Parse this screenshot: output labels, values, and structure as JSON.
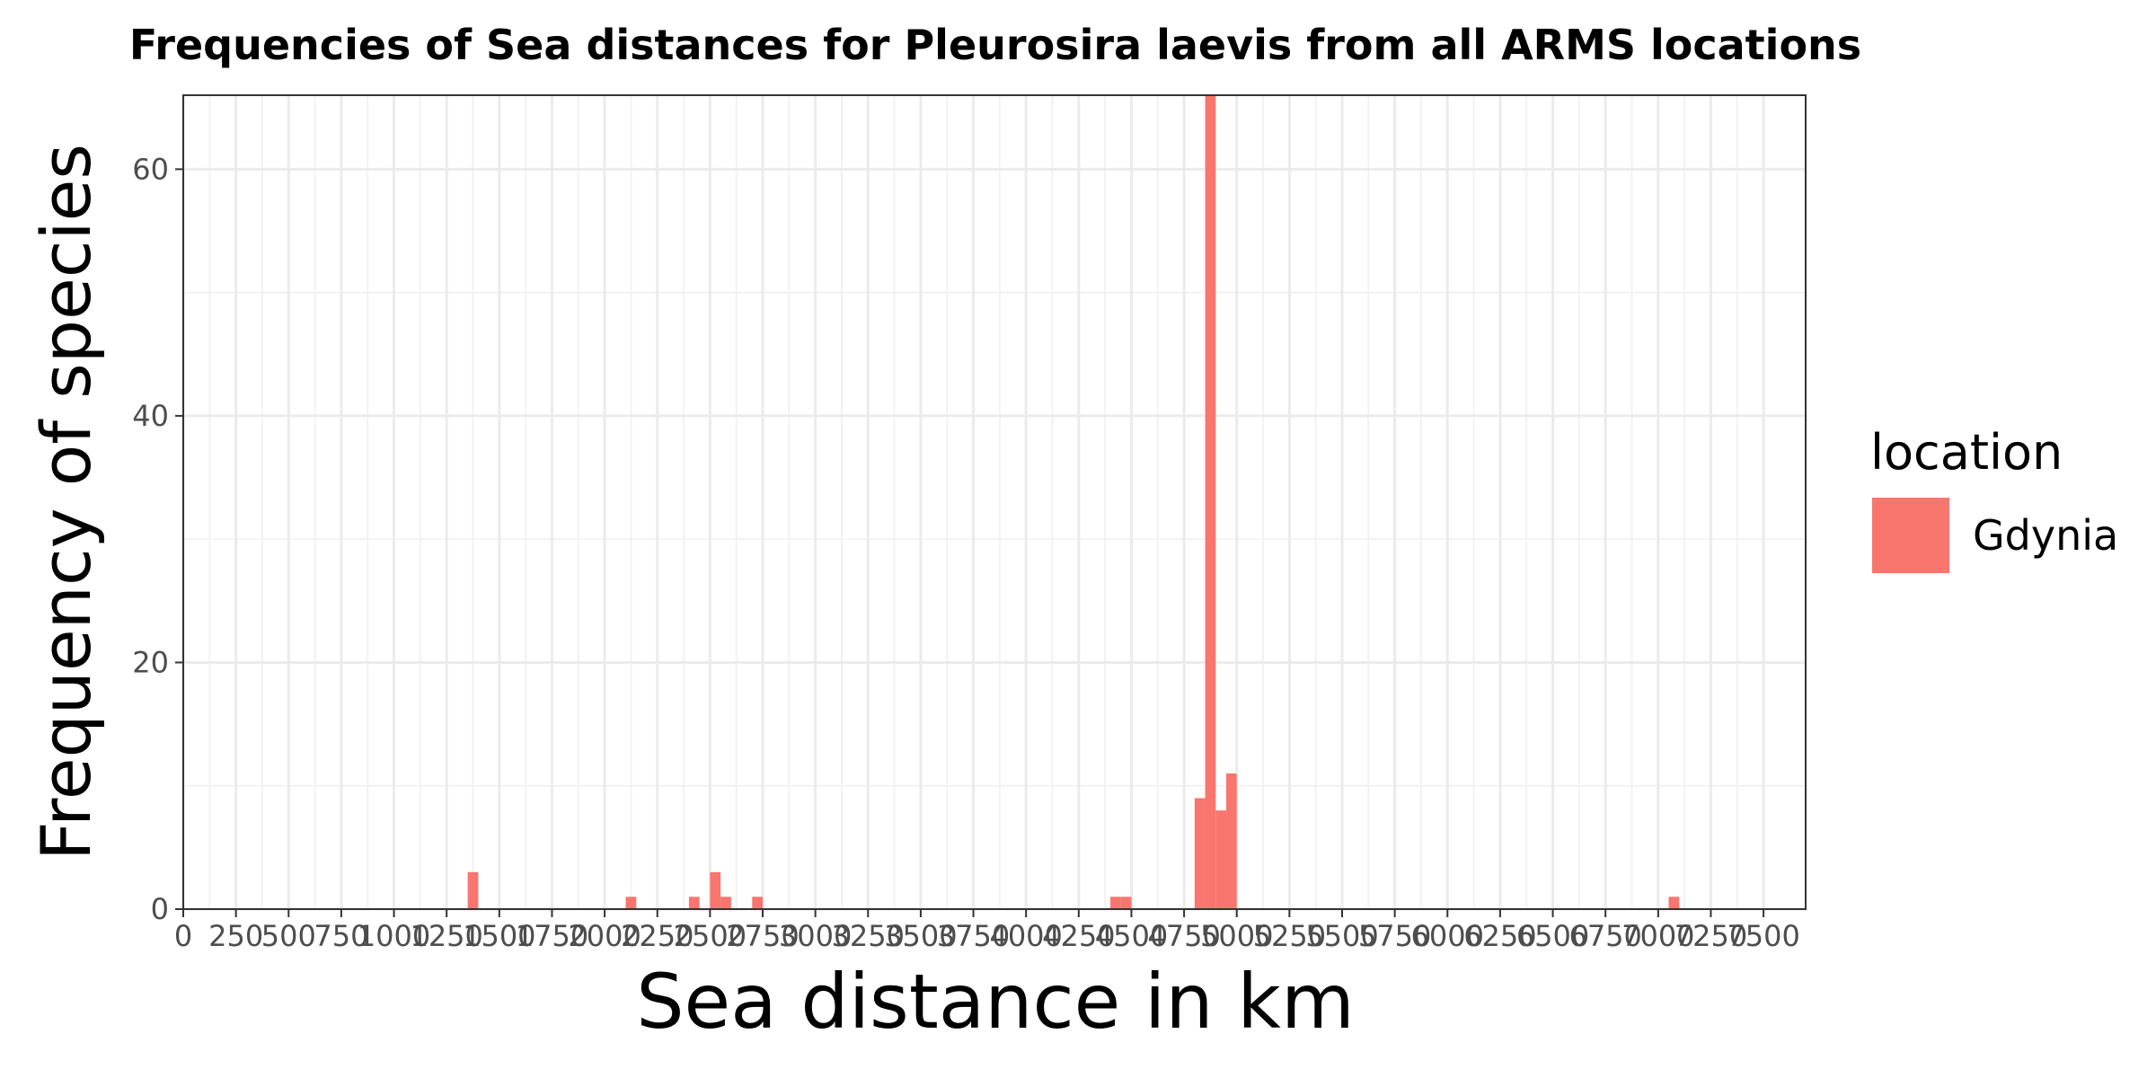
{
  "chart_data": {
    "type": "bar",
    "title": "Frequencies of Sea distances for Pleurosira laevis from all ARMS locations",
    "xlabel": "Sea distance in km",
    "ylabel": "Frequency of species",
    "xlim": [
      0,
      7700
    ],
    "ylim": [
      0,
      66
    ],
    "bin_width": 50,
    "x_ticks": [
      0,
      250,
      500,
      750,
      1000,
      1250,
      1500,
      1750,
      2000,
      2250,
      2500,
      2750,
      3000,
      3250,
      3500,
      3750,
      4000,
      4250,
      4500,
      4750,
      5000,
      5250,
      5500,
      5750,
      6000,
      6250,
      6500,
      6750,
      7000,
      7250,
      7500
    ],
    "y_ticks": [
      0,
      20,
      40,
      60
    ],
    "grid": true,
    "legend": {
      "title": "location",
      "position": "right"
    },
    "series": [
      {
        "name": "Gdynia",
        "color": "#F8766D",
        "bins": [
          {
            "x": 1350,
            "y": 3
          },
          {
            "x": 2100,
            "y": 1
          },
          {
            "x": 2400,
            "y": 1
          },
          {
            "x": 2500,
            "y": 3
          },
          {
            "x": 2550,
            "y": 1
          },
          {
            "x": 2700,
            "y": 1
          },
          {
            "x": 4400,
            "y": 1
          },
          {
            "x": 4450,
            "y": 1
          },
          {
            "x": 4800,
            "y": 9
          },
          {
            "x": 4850,
            "y": 66
          },
          {
            "x": 4900,
            "y": 8
          },
          {
            "x": 4950,
            "y": 11
          },
          {
            "x": 7050,
            "y": 1
          }
        ]
      }
    ]
  }
}
